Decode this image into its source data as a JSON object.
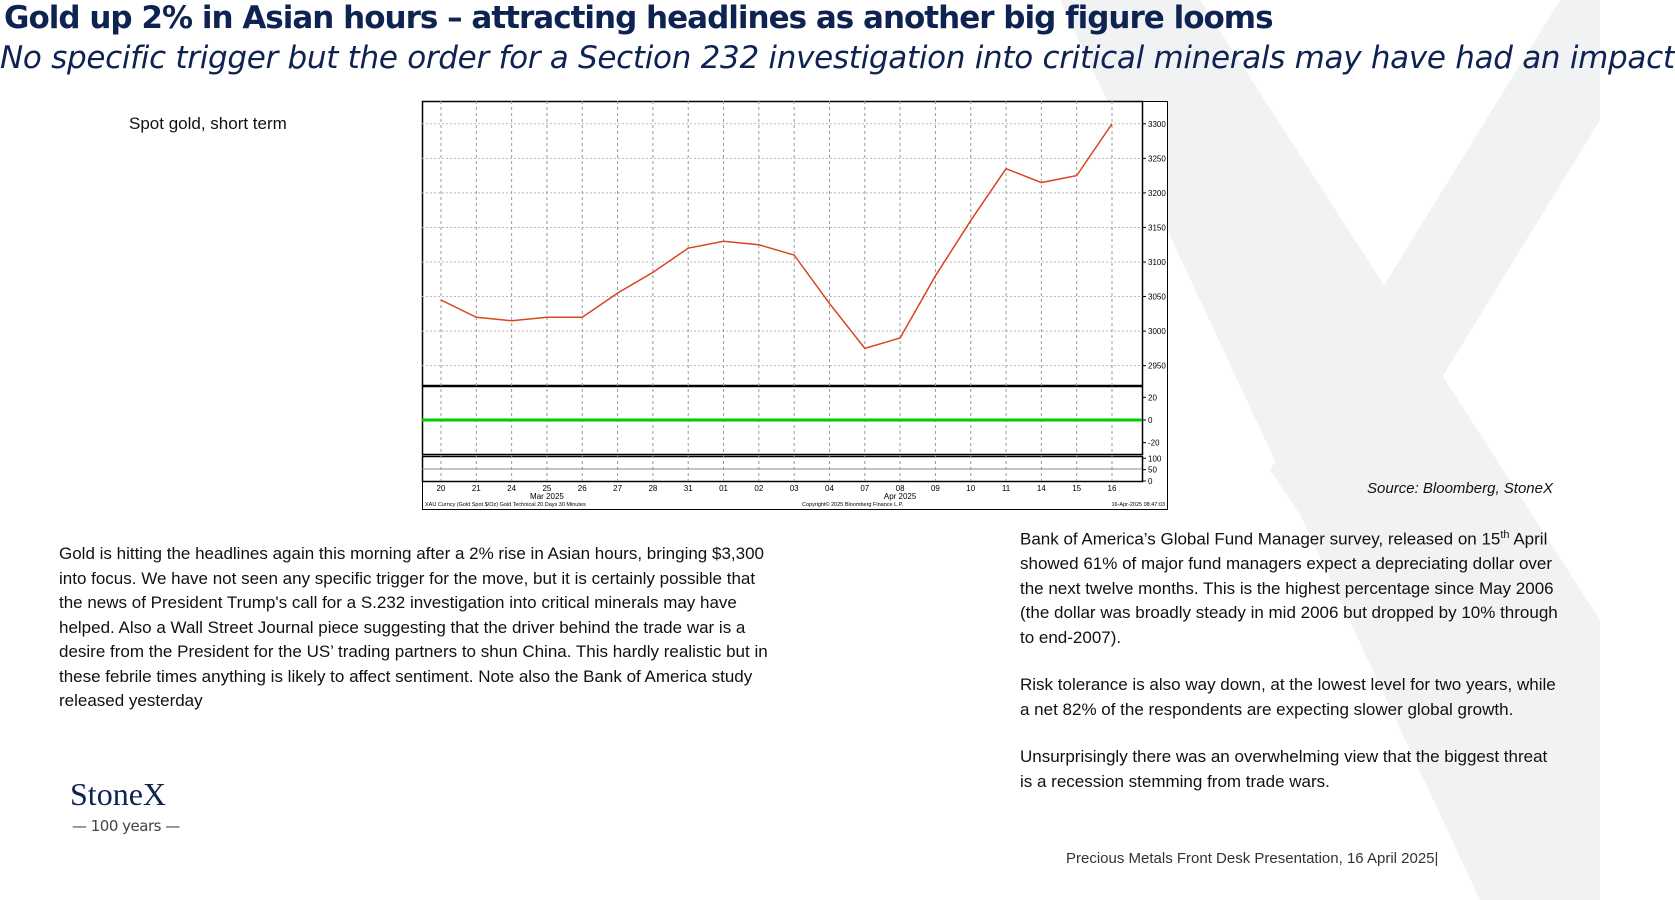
{
  "header": {
    "title": "Gold up 2% in Asian hours – attracting headlines as another big figure looms",
    "subtitle": "No specific trigger but the order for a Section 232 investigation into critical minerals may have had an impact"
  },
  "chart_label": "Spot gold, short term",
  "source": "Source: Bloomberg, StoneX",
  "chart_data": {
    "type": "line",
    "x": [
      "20",
      "21",
      "24",
      "25",
      "26",
      "27",
      "28",
      "31",
      "01",
      "02",
      "03",
      "04",
      "07",
      "08",
      "09",
      "10",
      "11",
      "14",
      "15",
      "16"
    ],
    "months": [
      null,
      null,
      null,
      "Mar 2025",
      null,
      null,
      null,
      null,
      null,
      null,
      null,
      null,
      null,
      "Apr 2025",
      null,
      null,
      null,
      null,
      null,
      null
    ],
    "series": [
      {
        "color": "#d9461e",
        "values": [
          3045,
          3020,
          3015,
          3020,
          3020,
          3055,
          3085,
          3120,
          3130,
          3125,
          3110,
          3040,
          2975,
          2990,
          3080,
          3160,
          3235,
          3215,
          3225,
          3300
        ]
      }
    ],
    "ylim": [
      2922,
      3333
    ],
    "yticks": [
      2950,
      3000,
      3050,
      3100,
      3150,
      3200,
      3250,
      3300
    ],
    "oscillator": {
      "ylim": [
        -30,
        30
      ],
      "yticks": [
        20,
        0,
        {
          "value": -20,
          "label": "-20"
        }
      ]
    },
    "rsi": {
      "ylim": [
        0,
        110
      ],
      "yticks": [
        0,
        50,
        100
      ]
    },
    "footer_left": "XAU Curncy (Gold Spot $/Oz) Gold Technical 20 Days 30 Minutes",
    "footer_mid": "Copyright© 2025 Bloomberg Finance L.P.",
    "footer_right": "16-Apr-2025 08:47:03",
    "grid": true
  },
  "left_text": "Gold is hitting the headlines again this morning after a 2% rise in Asian hours, bringing $3,300 into focus.  We have not seen any specific trigger for the move, but it is certainly possible that the news of President Trump's call for a S.232 investigation into critical minerals may have helped.  Also a Wall Street Journal piece suggesting that the driver behind the trade war is a desire from the President for the US’ trading partners to shun China.   This hardly realistic but in these febrile times anything is likely to affect sentiment.  Note also the Bank of America study released yesterday",
  "right_text": {
    "p1_a": "Bank of America’s Global Fund Manager survey, released on 15",
    "p1_sup": "th",
    "p1_b": " April showed 61% of major fund managers expect a depreciating dollar over the next twelve months.   This is the highest percentage since May 2006 (the dollar was broadly steady in mid 2006 but dropped by 10% through to end-2007).",
    "p2": "Risk tolerance is also way down, at the lowest level for two years, while a net 82% of the respondents are expecting slower global growth.",
    "p3": "Unsurprisingly there was an overwhelming view that the biggest threat is a recession stemming from trade wars."
  },
  "logo": {
    "name": "StoneX",
    "tagline": "— 100 years —"
  },
  "footer": "Precious Metals Front Desk Presentation, 16 April 2025|"
}
